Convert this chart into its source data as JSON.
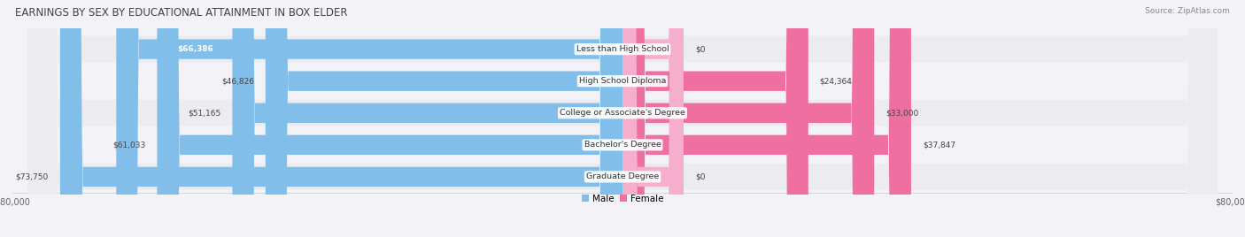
{
  "title": "EARNINGS BY SEX BY EDUCATIONAL ATTAINMENT IN BOX ELDER",
  "source": "Source: ZipAtlas.com",
  "categories": [
    "Less than High School",
    "High School Diploma",
    "College or Associate's Degree",
    "Bachelor's Degree",
    "Graduate Degree"
  ],
  "male_values": [
    66386,
    46826,
    51165,
    61033,
    73750
  ],
  "female_values": [
    0,
    24364,
    33000,
    37847,
    0
  ],
  "male_labels": [
    "$66,386",
    "$46,826",
    "$51,165",
    "$61,033",
    "$73,750"
  ],
  "female_labels": [
    "$0",
    "$24,364",
    "$33,000",
    "$37,847",
    "$0"
  ],
  "max_value": 80000,
  "male_color": "#82BEEA",
  "female_color": "#EF6FA0",
  "female_zero_color": "#F5AECB",
  "row_bg_even": "#EBEBF0",
  "row_bg_odd": "#F3F3F7",
  "fig_bg": "#F3F3F7",
  "title_color": "#444444",
  "label_color": "#444444",
  "axis_tick_color": "#666666"
}
